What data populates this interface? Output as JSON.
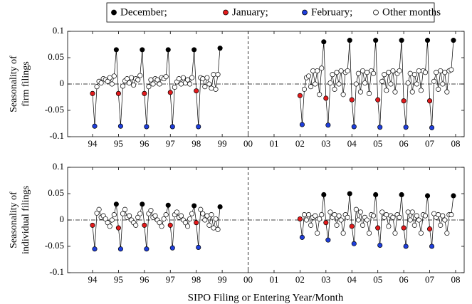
{
  "chart_data": {
    "type": "line",
    "series": [
      {
        "name": "December;",
        "color": "#000000"
      },
      {
        "name": "January;",
        "color": "#e31a1c"
      },
      {
        "name": "February;",
        "color": "#1f3fdc"
      },
      {
        "name": "Other months",
        "color": "#ffffff"
      }
    ],
    "xlabel": "SIPO Filing or Entering Year/Month",
    "xlim": [
      1993.04,
      2008.33
    ],
    "xticks": [
      {
        "value": 1994,
        "label": "94"
      },
      {
        "value": 1995,
        "label": "95"
      },
      {
        "value": 1996,
        "label": "96"
      },
      {
        "value": 1997,
        "label": "97"
      },
      {
        "value": 1998,
        "label": "98"
      },
      {
        "value": 1999,
        "label": "99"
      },
      {
        "value": 2000,
        "label": "00"
      },
      {
        "value": 2001,
        "label": "01"
      },
      {
        "value": 2002,
        "label": "02"
      },
      {
        "value": 2003,
        "label": "03"
      },
      {
        "value": 2004,
        "label": "04"
      },
      {
        "value": 2005,
        "label": "05"
      },
      {
        "value": 2006,
        "label": "06"
      },
      {
        "value": 2007,
        "label": "07"
      },
      {
        "value": 2008,
        "label": "08"
      }
    ],
    "reference_x": 2000,
    "reference_y": 0,
    "x": [
      1994,
      1994.083,
      1994.167,
      1994.25,
      1994.333,
      1994.417,
      1994.5,
      1994.583,
      1994.667,
      1994.75,
      1994.833,
      1994.917,
      1995,
      1995.083,
      1995.167,
      1995.25,
      1995.333,
      1995.417,
      1995.5,
      1995.583,
      1995.667,
      1995.75,
      1995.833,
      1995.917,
      1996,
      1996.083,
      1996.167,
      1996.25,
      1996.333,
      1996.417,
      1996.5,
      1996.583,
      1996.667,
      1996.75,
      1996.833,
      1996.917,
      1997,
      1997.083,
      1997.167,
      1997.25,
      1997.333,
      1997.417,
      1997.5,
      1997.583,
      1997.667,
      1997.75,
      1997.833,
      1997.917,
      1998,
      1998.083,
      1998.167,
      1998.25,
      1998.333,
      1998.417,
      1998.5,
      1998.583,
      1998.667,
      1998.75,
      1998.833,
      1998.917,
      2000,
      2002,
      2002.083,
      2002.167,
      2002.25,
      2002.333,
      2002.417,
      2002.5,
      2002.583,
      2002.667,
      2002.75,
      2002.833,
      2002.917,
      2003,
      2003.083,
      2003.167,
      2003.25,
      2003.333,
      2003.417,
      2003.5,
      2003.583,
      2003.667,
      2003.75,
      2003.833,
      2003.917,
      2004,
      2004.083,
      2004.167,
      2004.25,
      2004.333,
      2004.417,
      2004.5,
      2004.583,
      2004.667,
      2004.75,
      2004.833,
      2004.917,
      2005,
      2005.083,
      2005.167,
      2005.25,
      2005.333,
      2005.417,
      2005.5,
      2005.583,
      2005.667,
      2005.75,
      2005.833,
      2005.917,
      2006,
      2006.083,
      2006.167,
      2006.25,
      2006.333,
      2006.417,
      2006.5,
      2006.583,
      2006.667,
      2006.75,
      2006.833,
      2006.917,
      2007,
      2007.083,
      2007.167,
      2007.25,
      2007.333,
      2007.417,
      2007.5,
      2007.583,
      2007.667,
      2007.75,
      2007.833,
      2007.917
    ],
    "panels": [
      {
        "ylabel": [
          "Seasonality of",
          "firm filings"
        ],
        "ylim": [
          -0.1,
          0.1
        ],
        "yticks": [
          -0.1,
          -0.05,
          0,
          0.05,
          0.1
        ],
        "values": [
          -0.018,
          -0.08,
          -0.005,
          0.005,
          0.002,
          0.01,
          0.008,
          0.005,
          0.012,
          0.0,
          0.015,
          0.065,
          -0.018,
          -0.08,
          -0.004,
          0.006,
          0.01,
          0.002,
          0.012,
          -0.002,
          0.01,
          0.008,
          0.016,
          0.065,
          -0.018,
          -0.081,
          -0.005,
          0.008,
          0.0,
          0.01,
          0.008,
          0.0,
          0.012,
          0.01,
          0.014,
          0.065,
          -0.016,
          -0.081,
          -0.006,
          0.004,
          0.01,
          0.0,
          0.012,
          0.002,
          0.008,
          0.0,
          0.012,
          0.065,
          -0.013,
          -0.081,
          0.012,
          0.01,
          -0.005,
          0.012,
          0.0,
          -0.008,
          0.018,
          -0.01,
          0.018,
          0.068,
          null,
          -0.022,
          -0.077,
          -0.01,
          0.012,
          0.015,
          -0.005,
          0.025,
          0.0,
          0.025,
          -0.02,
          0.03,
          0.08,
          -0.027,
          -0.078,
          0.002,
          0.018,
          -0.01,
          0.022,
          0.0,
          0.025,
          -0.02,
          0.022,
          0.025,
          0.083,
          -0.03,
          -0.081,
          0.0,
          0.02,
          -0.015,
          0.025,
          0.002,
          0.022,
          -0.018,
          0.025,
          0.02,
          0.083,
          -0.03,
          -0.082,
          0.005,
          0.018,
          -0.012,
          0.022,
          0.0,
          0.025,
          -0.015,
          0.02,
          0.025,
          0.083,
          -0.032,
          -0.082,
          0.002,
          0.02,
          -0.015,
          0.018,
          0.0,
          0.025,
          -0.012,
          0.025,
          0.022,
          0.083,
          -0.032,
          -0.083,
          0.005,
          0.022,
          -0.01,
          0.025,
          0.0,
          0.022,
          -0.015,
          0.025,
          0.027,
          0.083
        ]
      },
      {
        "ylabel": [
          "Seasonality of",
          "individual filings"
        ],
        "ylim": [
          -0.1,
          0.1
        ],
        "yticks": [
          -0.1,
          -0.05,
          0,
          0.05,
          0.1
        ],
        "values": [
          -0.01,
          -0.055,
          0.013,
          0.02,
          0.005,
          0.008,
          0.002,
          -0.005,
          -0.012,
          0.0,
          0.01,
          0.03,
          -0.015,
          -0.055,
          0.012,
          0.02,
          0.005,
          0.008,
          0.0,
          -0.005,
          -0.01,
          0.005,
          0.012,
          0.03,
          -0.01,
          -0.055,
          0.012,
          0.018,
          0.005,
          0.008,
          0.0,
          -0.005,
          -0.012,
          0.002,
          0.01,
          0.028,
          -0.01,
          -0.053,
          0.01,
          0.015,
          0.005,
          0.008,
          0.0,
          -0.005,
          -0.012,
          0.002,
          0.012,
          0.027,
          -0.005,
          -0.052,
          0.02,
          0.012,
          0.0,
          0.008,
          -0.01,
          0.01,
          -0.015,
          0.002,
          -0.018,
          0.025,
          null,
          0.002,
          -0.033,
          0.01,
          0.0,
          0.01,
          -0.01,
          0.005,
          0.008,
          -0.025,
          0.002,
          0.01,
          0.048,
          -0.005,
          -0.038,
          0.015,
          0.005,
          0.01,
          -0.01,
          0.008,
          0.0,
          -0.025,
          0.01,
          0.005,
          0.05,
          -0.012,
          -0.045,
          0.02,
          0.0,
          0.015,
          -0.01,
          0.005,
          0.0,
          -0.025,
          0.01,
          0.008,
          0.048,
          -0.015,
          -0.048,
          0.015,
          0.005,
          0.01,
          -0.012,
          0.008,
          0.005,
          -0.025,
          0.01,
          0.005,
          0.048,
          -0.015,
          -0.05,
          0.015,
          0.0,
          0.015,
          -0.01,
          0.008,
          0.0,
          -0.025,
          0.01,
          0.008,
          0.046,
          -0.017,
          -0.05,
          0.012,
          0.005,
          0.01,
          -0.01,
          0.008,
          0.0,
          -0.025,
          0.01,
          0.01,
          0.046
        ]
      }
    ]
  }
}
